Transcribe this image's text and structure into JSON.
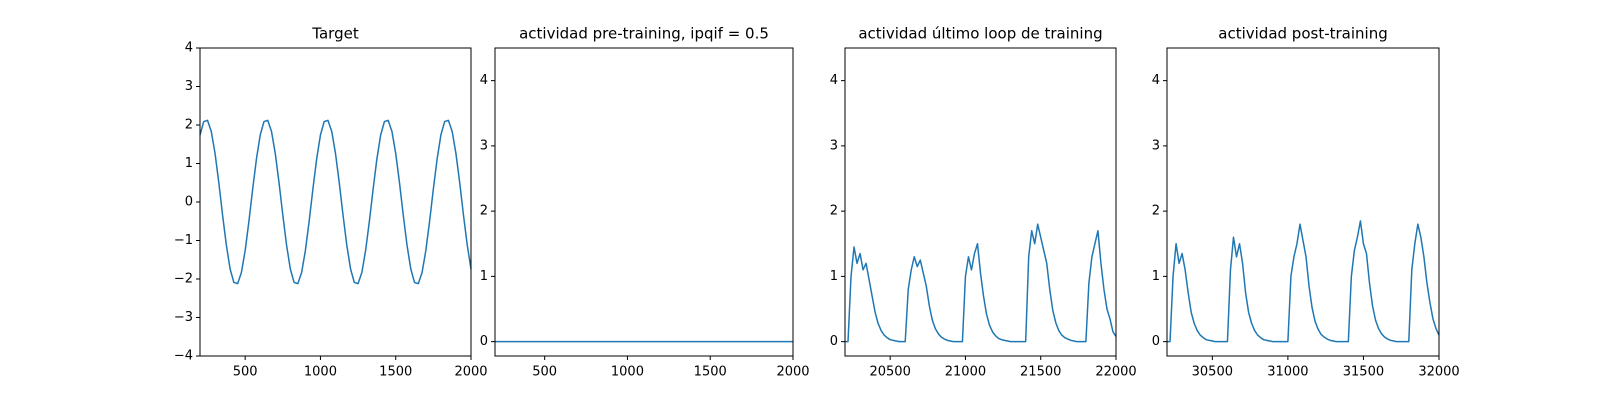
{
  "chart_data": [
    {
      "type": "line",
      "title": "Target",
      "color": "#1f77b4",
      "x": [
        200,
        225,
        250,
        275,
        300,
        325,
        350,
        375,
        400,
        425,
        450,
        475,
        500,
        525,
        550,
        575,
        600,
        625,
        650,
        675,
        700,
        725,
        750,
        775,
        800,
        825,
        850,
        875,
        900,
        925,
        950,
        975,
        1000,
        1025,
        1050,
        1075,
        1100,
        1125,
        1150,
        1175,
        1200,
        1225,
        1250,
        1275,
        1300,
        1325,
        1350,
        1375,
        1400,
        1425,
        1450,
        1475,
        1500,
        1525,
        1550,
        1575,
        1600,
        1625,
        1650,
        1675,
        1700,
        1725,
        1750,
        1775,
        1800,
        1825,
        1850,
        1875,
        1900,
        1925,
        1950,
        1975,
        2000
      ],
      "values": [
        1.74,
        2.09,
        2.12,
        1.83,
        1.26,
        0.5,
        -0.34,
        -1.12,
        -1.74,
        -2.09,
        -2.12,
        -1.83,
        -1.26,
        -0.5,
        0.34,
        1.12,
        1.74,
        2.09,
        2.12,
        1.83,
        1.26,
        0.5,
        -0.34,
        -1.12,
        -1.74,
        -2.09,
        -2.12,
        -1.83,
        -1.26,
        -0.5,
        0.34,
        1.12,
        1.74,
        2.09,
        2.12,
        1.83,
        1.26,
        0.5,
        -0.34,
        -1.12,
        -1.74,
        -2.09,
        -2.12,
        -1.83,
        -1.26,
        -0.5,
        0.34,
        1.12,
        1.74,
        2.09,
        2.12,
        1.83,
        1.26,
        0.5,
        -0.34,
        -1.12,
        -1.74,
        -2.09,
        -2.12,
        -1.83,
        -1.26,
        -0.5,
        0.34,
        1.12,
        1.74,
        2.09,
        2.12,
        1.83,
        1.26,
        0.5,
        -0.34,
        -1.12,
        -1.74
      ],
      "xlim": [
        200,
        2000
      ],
      "xticks": [
        500,
        1000,
        1500,
        2000
      ],
      "ylim": [
        -4,
        4
      ],
      "yticks": [
        {
          "value": -4,
          "label": "−4"
        },
        {
          "value": -3,
          "label": "−3"
        },
        {
          "value": -2,
          "label": "−2"
        },
        {
          "value": -1,
          "label": "−1"
        },
        0,
        1,
        2,
        3,
        4
      ]
    },
    {
      "type": "line",
      "title": "actividad pre-training, ipqif = 0.5",
      "color": "#1f77b4",
      "x": [
        200,
        2000
      ],
      "values": [
        0,
        0
      ],
      "xlim": [
        200,
        2000
      ],
      "xticks": [
        500,
        1000,
        1500,
        2000
      ],
      "ylim": [
        -0.22,
        4.5
      ],
      "yticks": [
        0,
        1,
        2,
        3,
        4
      ]
    },
    {
      "type": "line",
      "title": "actividad último loop de training",
      "color": "#1f77b4",
      "x": [
        20200,
        20220,
        20240,
        20260,
        20280,
        20300,
        20320,
        20340,
        20360,
        20380,
        20400,
        20420,
        20440,
        20460,
        20480,
        20500,
        20520,
        20540,
        20560,
        20580,
        20600,
        20620,
        20640,
        20660,
        20680,
        20700,
        20720,
        20740,
        20760,
        20780,
        20800,
        20820,
        20840,
        20860,
        20880,
        20900,
        20920,
        20940,
        20960,
        20980,
        21000,
        21020,
        21040,
        21060,
        21080,
        21100,
        21120,
        21140,
        21160,
        21180,
        21200,
        21220,
        21240,
        21260,
        21280,
        21300,
        21320,
        21340,
        21360,
        21380,
        21400,
        21420,
        21440,
        21460,
        21480,
        21500,
        21520,
        21540,
        21560,
        21580,
        21600,
        21620,
        21640,
        21660,
        21680,
        21700,
        21720,
        21740,
        21760,
        21780,
        21800,
        21820,
        21840,
        21860,
        21880,
        21900,
        21920,
        21940,
        21960,
        21980,
        22000
      ],
      "values": [
        0,
        0,
        1.0,
        1.45,
        1.2,
        1.35,
        1.1,
        1.2,
        0.95,
        0.7,
        0.45,
        0.28,
        0.17,
        0.1,
        0.06,
        0.03,
        0.02,
        0.01,
        0,
        0,
        0,
        0.8,
        1.1,
        1.3,
        1.15,
        1.25,
        1.05,
        0.85,
        0.55,
        0.33,
        0.2,
        0.12,
        0.07,
        0.04,
        0.02,
        0.01,
        0,
        0,
        0,
        0,
        1.0,
        1.3,
        1.1,
        1.35,
        1.5,
        1.05,
        0.7,
        0.42,
        0.25,
        0.15,
        0.09,
        0.05,
        0.03,
        0.02,
        0.01,
        0,
        0,
        0,
        0,
        0,
        0,
        1.3,
        1.7,
        1.5,
        1.8,
        1.6,
        1.4,
        1.2,
        0.8,
        0.48,
        0.29,
        0.17,
        0.1,
        0.06,
        0.04,
        0.02,
        0.01,
        0,
        0,
        0,
        0,
        0.9,
        1.3,
        1.5,
        1.7,
        1.2,
        0.8,
        0.5,
        0.35,
        0.15,
        0.08
      ],
      "xlim": [
        20200,
        22000
      ],
      "xticks": [
        20500,
        21000,
        21500,
        22000
      ],
      "ylim": [
        -0.22,
        4.5
      ],
      "yticks": [
        0,
        1,
        2,
        3,
        4
      ]
    },
    {
      "type": "line",
      "title": "actividad post-training",
      "color": "#1f77b4",
      "x": [
        30200,
        30220,
        30240,
        30260,
        30280,
        30300,
        30320,
        30340,
        30360,
        30380,
        30400,
        30420,
        30440,
        30460,
        30480,
        30500,
        30520,
        30540,
        30560,
        30580,
        30600,
        30620,
        30640,
        30660,
        30680,
        30700,
        30720,
        30740,
        30760,
        30780,
        30800,
        30820,
        30840,
        30860,
        30880,
        30900,
        30920,
        30940,
        30960,
        30980,
        31000,
        31020,
        31040,
        31060,
        31080,
        31100,
        31120,
        31140,
        31160,
        31180,
        31200,
        31220,
        31240,
        31260,
        31280,
        31300,
        31320,
        31340,
        31360,
        31380,
        31400,
        31420,
        31440,
        31460,
        31480,
        31500,
        31520,
        31540,
        31560,
        31580,
        31600,
        31620,
        31640,
        31660,
        31680,
        31700,
        31720,
        31740,
        31760,
        31780,
        31800,
        31820,
        31840,
        31860,
        31880,
        31900,
        31920,
        31940,
        31960,
        31980,
        32000
      ],
      "values": [
        0,
        0,
        1.0,
        1.5,
        1.2,
        1.35,
        1.1,
        0.75,
        0.45,
        0.28,
        0.17,
        0.1,
        0.06,
        0.03,
        0.02,
        0.01,
        0,
        0,
        0,
        0,
        0,
        1.1,
        1.6,
        1.3,
        1.5,
        1.2,
        0.75,
        0.45,
        0.28,
        0.17,
        0.1,
        0.06,
        0.03,
        0.02,
        0.01,
        0,
        0,
        0,
        0,
        0,
        0,
        1.0,
        1.3,
        1.5,
        1.8,
        1.55,
        1.3,
        0.85,
        0.52,
        0.31,
        0.19,
        0.11,
        0.07,
        0.04,
        0.02,
        0.01,
        0,
        0,
        0,
        0,
        0,
        1.0,
        1.4,
        1.6,
        1.85,
        1.5,
        1.35,
        0.9,
        0.55,
        0.33,
        0.2,
        0.12,
        0.07,
        0.04,
        0.02,
        0.01,
        0,
        0,
        0,
        0,
        0,
        1.1,
        1.5,
        1.8,
        1.6,
        1.3,
        0.9,
        0.6,
        0.35,
        0.2,
        0.1
      ],
      "xlim": [
        30200,
        32000
      ],
      "xticks": [
        30500,
        31000,
        31500,
        32000
      ],
      "ylim": [
        -0.22,
        4.5
      ],
      "yticks": [
        0,
        1,
        2,
        3,
        4
      ]
    }
  ]
}
